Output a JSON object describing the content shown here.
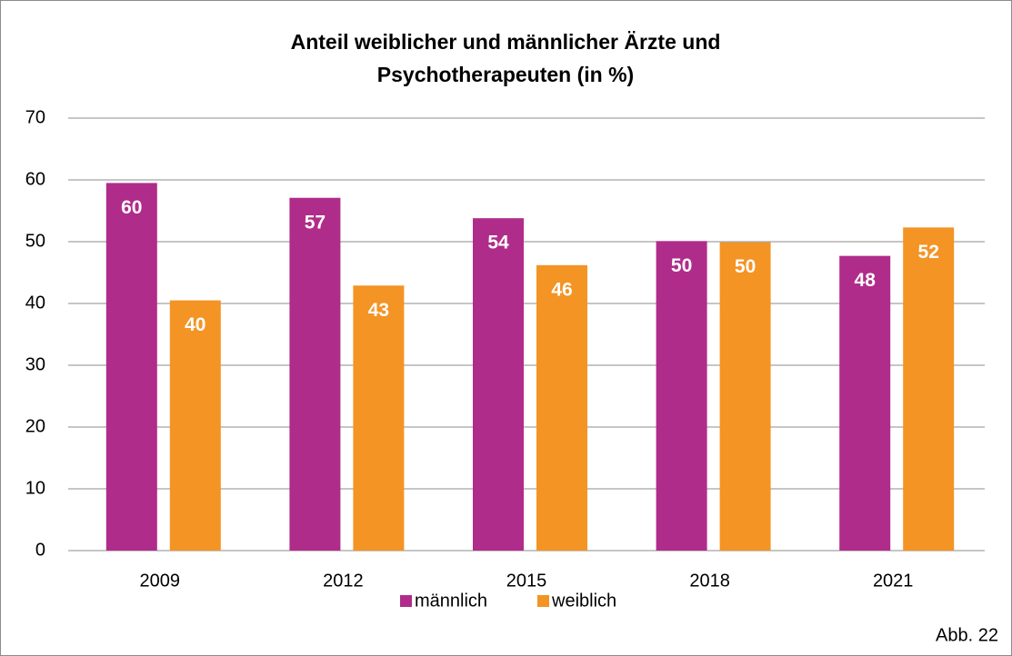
{
  "chart_data": {
    "type": "bar",
    "title": [
      "Anteil weiblicher und männlicher Ärzte und",
      "Psychotherapeuten (in %)"
    ],
    "categories": [
      "2009",
      "2012",
      "2015",
      "2018",
      "2021"
    ],
    "series": [
      {
        "name": "männlich",
        "color": "#b02c8a",
        "values": [
          59.5,
          57.1,
          53.8,
          50.1,
          47.7
        ],
        "value_labels": [
          "60",
          "57",
          "54",
          "50",
          "48"
        ]
      },
      {
        "name": "weiblich",
        "color": "#f39425",
        "values": [
          40.5,
          42.9,
          46.2,
          49.9,
          52.3
        ],
        "value_labels": [
          "40",
          "43",
          "46",
          "50",
          "52"
        ]
      }
    ],
    "ylim": [
      0,
      70
    ],
    "yticks": [
      0,
      10,
      20,
      30,
      40,
      50,
      60,
      70
    ],
    "grid": true,
    "legend": "bottom",
    "annotation": "Abb. 22"
  }
}
